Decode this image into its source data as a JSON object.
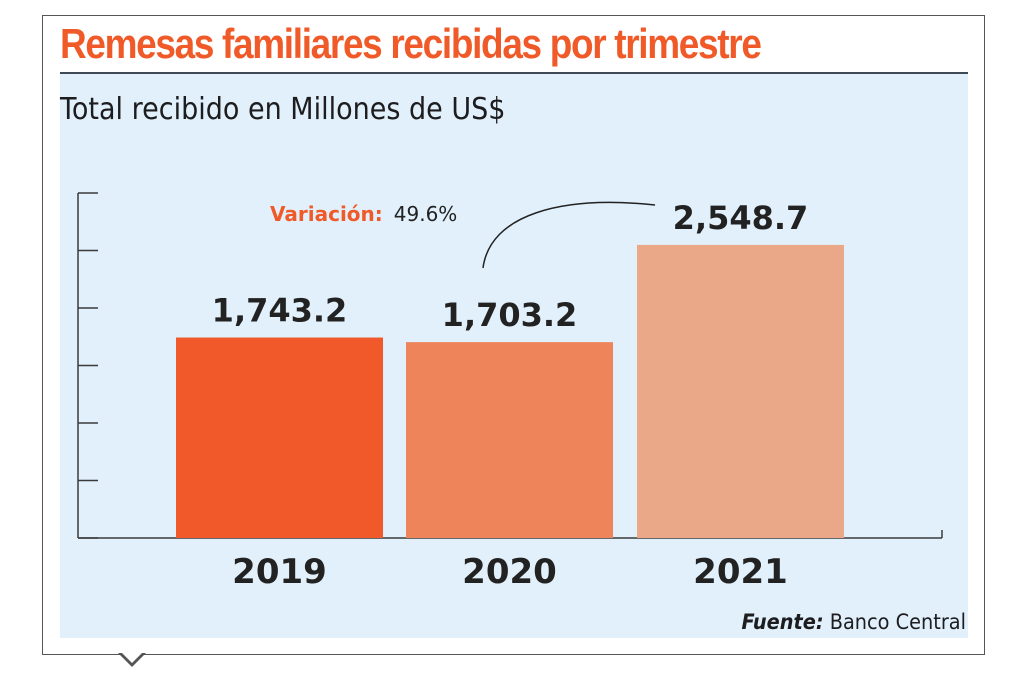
{
  "chart_data": {
    "type": "bar",
    "title": "Remesas familiares recibidas por trimestre",
    "subtitle": "Total recibido en Millones de US$",
    "categories": [
      "2019",
      "2020",
      "2021"
    ],
    "values": [
      1743.2,
      1703.2,
      2548.7
    ],
    "value_labels": [
      "1,743.2",
      "1,703.2",
      "2,548.7"
    ],
    "colors": [
      "#f1592a",
      "#ee845a",
      "#eba888"
    ],
    "ylim": [
      0,
      3000
    ],
    "y_ticks_labeled": false,
    "grid": false,
    "annotation": {
      "label": "Variación:",
      "value": "49.6%",
      "label_color": "#f05a28"
    },
    "source": {
      "label": "Fuente:",
      "value": "Banco Central"
    }
  }
}
